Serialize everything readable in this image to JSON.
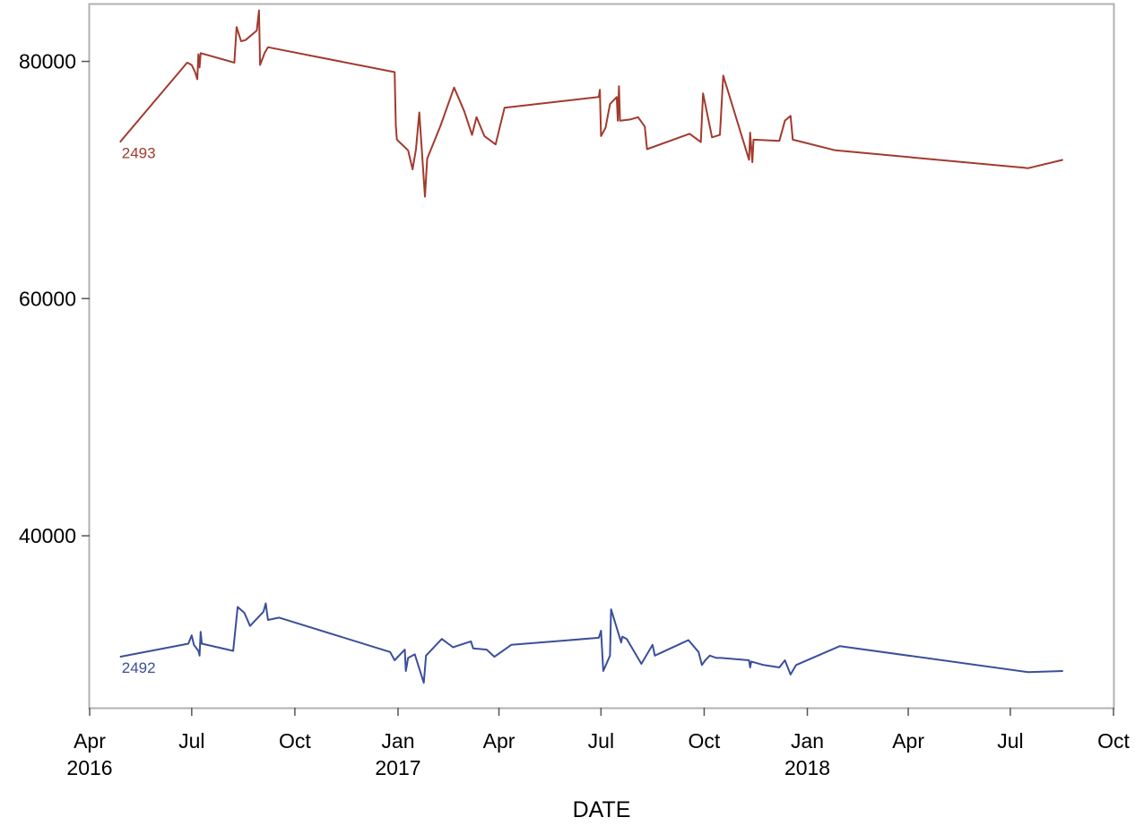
{
  "chart_data": {
    "type": "line",
    "title": "",
    "xlabel": "DATE",
    "ylabel": "",
    "x_type": "date",
    "xlim": [
      "2016-04-01",
      "2018-10-01"
    ],
    "ylim": [
      25500,
      84800
    ],
    "grid": false,
    "legend": "none",
    "y_ticks": [
      40000,
      60000,
      80000
    ],
    "x_ticks": [
      {
        "date": "2016-04-01",
        "label": "Apr",
        "sublabel": "2016"
      },
      {
        "date": "2016-07-01",
        "label": "Jul",
        "sublabel": ""
      },
      {
        "date": "2016-10-01",
        "label": "Oct",
        "sublabel": ""
      },
      {
        "date": "2017-01-01",
        "label": "Jan",
        "sublabel": "2017"
      },
      {
        "date": "2017-04-01",
        "label": "Apr",
        "sublabel": ""
      },
      {
        "date": "2017-07-01",
        "label": "Jul",
        "sublabel": ""
      },
      {
        "date": "2017-10-01",
        "label": "Oct",
        "sublabel": ""
      },
      {
        "date": "2018-01-01",
        "label": "Jan",
        "sublabel": "2018"
      },
      {
        "date": "2018-04-01",
        "label": "Apr",
        "sublabel": ""
      },
      {
        "date": "2018-07-01",
        "label": "Jul",
        "sublabel": ""
      },
      {
        "date": "2018-10-01",
        "label": "Oct",
        "sublabel": ""
      }
    ],
    "series": [
      {
        "name": "2493",
        "color": "#a23a2e",
        "points": [
          [
            "2016-04-28",
            73200
          ],
          [
            "2016-06-27",
            79900
          ],
          [
            "2016-07-01",
            79700
          ],
          [
            "2016-07-04",
            79100
          ],
          [
            "2016-07-06",
            78500
          ],
          [
            "2016-07-07",
            80600
          ],
          [
            "2016-07-08",
            79500
          ],
          [
            "2016-07-09",
            80700
          ],
          [
            "2016-08-08",
            79900
          ],
          [
            "2016-08-10",
            82900
          ],
          [
            "2016-08-14",
            81700
          ],
          [
            "2016-08-18",
            81800
          ],
          [
            "2016-08-28",
            82600
          ],
          [
            "2016-08-30",
            84300
          ],
          [
            "2016-08-31",
            79700
          ],
          [
            "2016-09-04",
            80700
          ],
          [
            "2016-09-07",
            81200
          ],
          [
            "2016-12-29",
            79100
          ],
          [
            "2016-12-30",
            74600
          ],
          [
            "2016-12-31",
            73400
          ],
          [
            "2017-01-10",
            72500
          ],
          [
            "2017-01-14",
            70900
          ],
          [
            "2017-01-17",
            72600
          ],
          [
            "2017-01-20",
            75700
          ],
          [
            "2017-01-25",
            68600
          ],
          [
            "2017-01-27",
            71800
          ],
          [
            "2017-02-08",
            74600
          ],
          [
            "2017-02-20",
            77800
          ],
          [
            "2017-03-01",
            75800
          ],
          [
            "2017-03-08",
            73800
          ],
          [
            "2017-03-12",
            75300
          ],
          [
            "2017-03-19",
            73700
          ],
          [
            "2017-03-29",
            73000
          ],
          [
            "2017-04-06",
            76100
          ],
          [
            "2017-06-29",
            77000
          ],
          [
            "2017-06-30",
            77600
          ],
          [
            "2017-07-01",
            73700
          ],
          [
            "2017-07-05",
            74400
          ],
          [
            "2017-07-09",
            76400
          ],
          [
            "2017-07-15",
            77000
          ],
          [
            "2017-07-16",
            75000
          ],
          [
            "2017-07-17",
            77900
          ],
          [
            "2017-07-18",
            75000
          ],
          [
            "2017-07-27",
            75100
          ],
          [
            "2017-08-03",
            75300
          ],
          [
            "2017-08-09",
            74500
          ],
          [
            "2017-08-11",
            72600
          ],
          [
            "2017-09-18",
            73900
          ],
          [
            "2017-09-28",
            73200
          ],
          [
            "2017-09-30",
            77300
          ],
          [
            "2017-10-08",
            73600
          ],
          [
            "2017-10-15",
            73800
          ],
          [
            "2017-10-18",
            78800
          ],
          [
            "2017-11-10",
            71700
          ],
          [
            "2017-11-11",
            74000
          ],
          [
            "2017-11-13",
            71500
          ],
          [
            "2017-11-14",
            73400
          ],
          [
            "2017-12-07",
            73300
          ],
          [
            "2017-12-12",
            75000
          ],
          [
            "2017-12-17",
            75400
          ],
          [
            "2017-12-19",
            73400
          ],
          [
            "2018-01-26",
            72500
          ],
          [
            "2018-07-17",
            71000
          ],
          [
            "2018-08-17",
            71700
          ]
        ]
      },
      {
        "name": "2492",
        "color": "#3b4f9a",
        "points": [
          [
            "2016-04-28",
            29800
          ],
          [
            "2016-06-28",
            30900
          ],
          [
            "2016-07-01",
            31600
          ],
          [
            "2016-07-03",
            30800
          ],
          [
            "2016-07-07",
            30300
          ],
          [
            "2016-07-08",
            29900
          ],
          [
            "2016-07-09",
            31900
          ],
          [
            "2016-07-10",
            30900
          ],
          [
            "2016-08-07",
            30300
          ],
          [
            "2016-08-11",
            34000
          ],
          [
            "2016-08-17",
            33500
          ],
          [
            "2016-08-22",
            32400
          ],
          [
            "2016-09-03",
            33600
          ],
          [
            "2016-09-05",
            34300
          ],
          [
            "2016-09-07",
            32900
          ],
          [
            "2016-09-17",
            33100
          ],
          [
            "2016-12-25",
            30200
          ],
          [
            "2016-12-29",
            29500
          ],
          [
            "2017-01-07",
            30400
          ],
          [
            "2017-01-08",
            28600
          ],
          [
            "2017-01-10",
            29700
          ],
          [
            "2017-01-16",
            30000
          ],
          [
            "2017-01-24",
            27600
          ],
          [
            "2017-01-26",
            29900
          ],
          [
            "2017-02-09",
            31300
          ],
          [
            "2017-02-19",
            30600
          ],
          [
            "2017-03-07",
            31100
          ],
          [
            "2017-03-09",
            30500
          ],
          [
            "2017-03-21",
            30400
          ],
          [
            "2017-03-28",
            29800
          ],
          [
            "2017-04-12",
            30800
          ],
          [
            "2017-06-29",
            31400
          ],
          [
            "2017-07-01",
            32000
          ],
          [
            "2017-07-03",
            28600
          ],
          [
            "2017-07-09",
            29900
          ],
          [
            "2017-07-10",
            33800
          ],
          [
            "2017-07-19",
            31000
          ],
          [
            "2017-07-20",
            31500
          ],
          [
            "2017-07-24",
            31300
          ],
          [
            "2017-08-06",
            29200
          ],
          [
            "2017-08-16",
            30800
          ],
          [
            "2017-08-18",
            29900
          ],
          [
            "2017-09-17",
            31200
          ],
          [
            "2017-09-26",
            30200
          ],
          [
            "2017-09-29",
            29100
          ],
          [
            "2017-10-02",
            29500
          ],
          [
            "2017-10-06",
            29900
          ],
          [
            "2017-10-12",
            29700
          ],
          [
            "2017-10-16",
            29700
          ],
          [
            "2017-11-10",
            29500
          ],
          [
            "2017-11-11",
            28900
          ],
          [
            "2017-11-12",
            29400
          ],
          [
            "2017-11-23",
            29100
          ],
          [
            "2017-12-07",
            28900
          ],
          [
            "2017-12-12",
            29500
          ],
          [
            "2017-12-17",
            28300
          ],
          [
            "2017-12-22",
            29100
          ],
          [
            "2018-01-30",
            30700
          ],
          [
            "2018-07-17",
            28500
          ],
          [
            "2018-08-17",
            28600
          ]
        ]
      }
    ]
  }
}
